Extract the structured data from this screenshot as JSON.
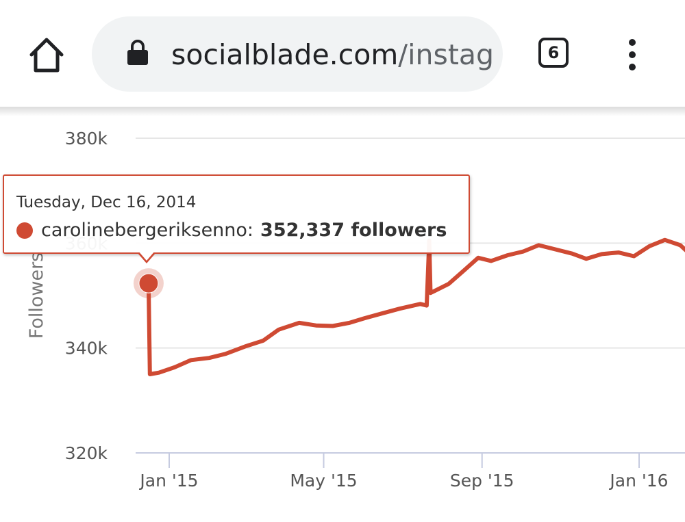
{
  "browser": {
    "url_domain": "socialblade.com",
    "url_path": "/instag",
    "tab_count": "6",
    "icons": [
      "home-icon",
      "lock-icon",
      "tab-switcher-icon",
      "overflow-menu-icon"
    ]
  },
  "tooltip": {
    "date": "Tuesday, Dec 16, 2014",
    "series_name": "carolinebergeriksenno:",
    "value": "352,337 followers"
  },
  "chart_data": {
    "type": "line",
    "title": "",
    "xlabel": "",
    "ylabel": "Followers",
    "ylim": [
      320000,
      380000
    ],
    "y_ticks": [
      {
        "value": 320000,
        "label": "320k"
      },
      {
        "value": 340000,
        "label": "340k"
      },
      {
        "value": 360000,
        "label": "360k"
      },
      {
        "value": 380000,
        "label": "380k"
      }
    ],
    "x_range": [
      "2014-12-16",
      "2016-02-10"
    ],
    "x_ticks": [
      {
        "date": "2015-01-01",
        "label": "Jan '15"
      },
      {
        "date": "2015-05-01",
        "label": "May '15"
      },
      {
        "date": "2015-09-01",
        "label": "Sep '15"
      },
      {
        "date": "2016-01-01",
        "label": "Jan '16"
      }
    ],
    "grid": true,
    "color": "#cf4a33",
    "highlighted_point": {
      "date": "2014-12-16",
      "value": 352337
    },
    "series": [
      {
        "name": "carolinebergeriksenno",
        "points": [
          [
            "2014-12-16",
            352337
          ],
          [
            "2014-12-17",
            335000
          ],
          [
            "2014-12-24",
            335300
          ],
          [
            "2015-01-05",
            336300
          ],
          [
            "2015-01-18",
            337700
          ],
          [
            "2015-02-01",
            338100
          ],
          [
            "2015-02-14",
            338900
          ],
          [
            "2015-03-01",
            340300
          ],
          [
            "2015-03-15",
            341400
          ],
          [
            "2015-03-27",
            343500
          ],
          [
            "2015-04-12",
            344800
          ],
          [
            "2015-04-25",
            344300
          ],
          [
            "2015-05-08",
            344200
          ],
          [
            "2015-05-21",
            344800
          ],
          [
            "2015-06-02",
            345700
          ],
          [
            "2015-06-14",
            346500
          ],
          [
            "2015-06-29",
            347500
          ],
          [
            "2015-07-15",
            348400
          ],
          [
            "2015-07-20",
            348100
          ],
          [
            "2015-07-22",
            360500
          ],
          [
            "2015-07-23",
            350500
          ],
          [
            "2015-08-06",
            352200
          ],
          [
            "2015-08-18",
            354800
          ],
          [
            "2015-08-29",
            357200
          ],
          [
            "2015-09-08",
            356600
          ],
          [
            "2015-09-21",
            357700
          ],
          [
            "2015-10-03",
            358400
          ],
          [
            "2015-10-15",
            359600
          ],
          [
            "2015-10-28",
            358800
          ],
          [
            "2015-11-10",
            358000
          ],
          [
            "2015-11-21",
            357000
          ],
          [
            "2015-12-03",
            357900
          ],
          [
            "2015-12-16",
            358200
          ],
          [
            "2015-12-28",
            357500
          ],
          [
            "2016-01-09",
            359400
          ],
          [
            "2016-01-21",
            360600
          ],
          [
            "2016-02-02",
            359600
          ],
          [
            "2016-02-10",
            357800
          ]
        ]
      }
    ]
  }
}
